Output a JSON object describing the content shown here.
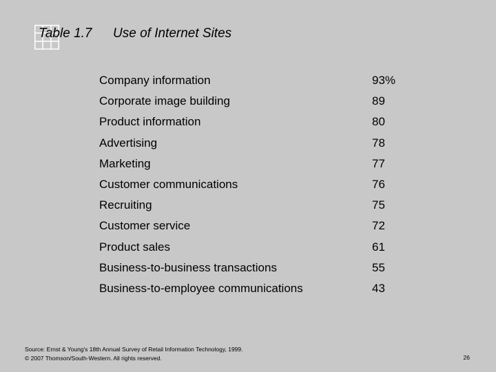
{
  "title": {
    "number": "Table 1.7",
    "text": "Use of Internet Sites"
  },
  "rows": [
    {
      "label": "Company information",
      "value": "93%"
    },
    {
      "label": "Corporate image building",
      "value": "89"
    },
    {
      "label": "Product information",
      "value": "80"
    },
    {
      "label": "Advertising",
      "value": "78"
    },
    {
      "label": "Marketing",
      "value": "77"
    },
    {
      "label": "Customer communications",
      "value": "76"
    },
    {
      "label": "Recruiting",
      "value": "75"
    },
    {
      "label": "Customer service",
      "value": "72"
    },
    {
      "label": "Product sales",
      "value": "61"
    },
    {
      "label": "Business-to-business transactions",
      "value": "55"
    },
    {
      "label": "Business-to-employee communications",
      "value": "43"
    }
  ],
  "footer": {
    "source": "Source: Ernst & Young's 18th Annual Survey of Retail Information Technology, 1999.",
    "copyright": "© 2007 Thomson/South-Western. All rights reserved.",
    "page_number": "26"
  },
  "colors": {
    "background": "#c8c8c8",
    "grid_line": "#ffffff"
  }
}
